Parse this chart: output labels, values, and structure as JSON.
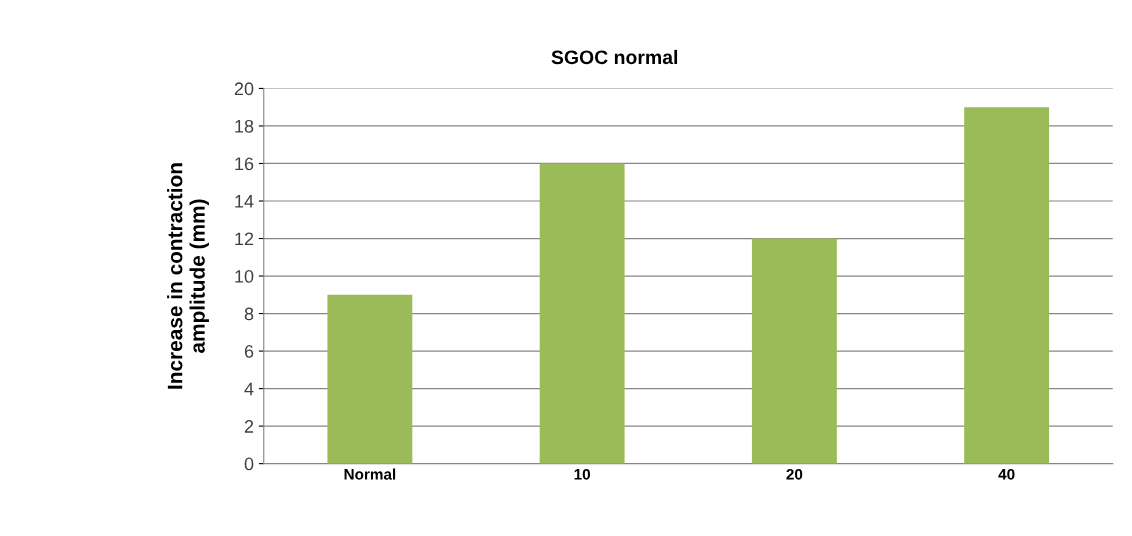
{
  "chart_data": {
    "type": "bar",
    "title": "SGOC normal",
    "ylabel": "Increase in contraction\namplitude (mm)",
    "categories": [
      "Normal",
      "10",
      "20",
      "40"
    ],
    "values": [
      9,
      16,
      12,
      19
    ],
    "color": "#9bbb59",
    "ylim": [
      0,
      20
    ],
    "yticks": [
      0,
      2,
      4,
      6,
      8,
      10,
      12,
      14,
      16,
      18,
      20
    ],
    "grid": "y",
    "legend": false
  }
}
